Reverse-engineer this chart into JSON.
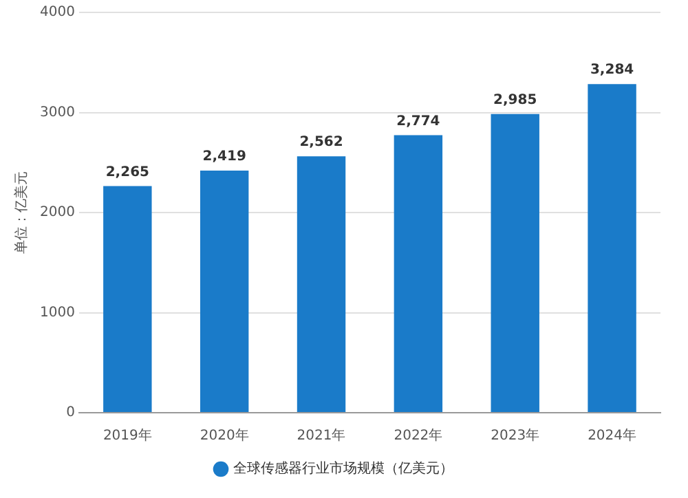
{
  "chart_data": {
    "type": "bar",
    "ylabel": "单位：亿美元",
    "categories": [
      "2019年",
      "2020年",
      "2021年",
      "2022年",
      "2023年",
      "2024年"
    ],
    "series": [
      {
        "name": "全球传感器行业市场规模（亿美元）",
        "color": "#1a7bc9",
        "values": [
          2265,
          2419,
          2562,
          2774,
          2985,
          3284
        ],
        "value_labels": [
          "2,265",
          "2,419",
          "2,562",
          "2,774",
          "2,985",
          "3,284"
        ]
      }
    ],
    "ylim": [
      0,
      4000
    ],
    "yticks": [
      0,
      1000,
      2000,
      3000,
      4000
    ],
    "grid": "y",
    "legend": "bottom"
  }
}
